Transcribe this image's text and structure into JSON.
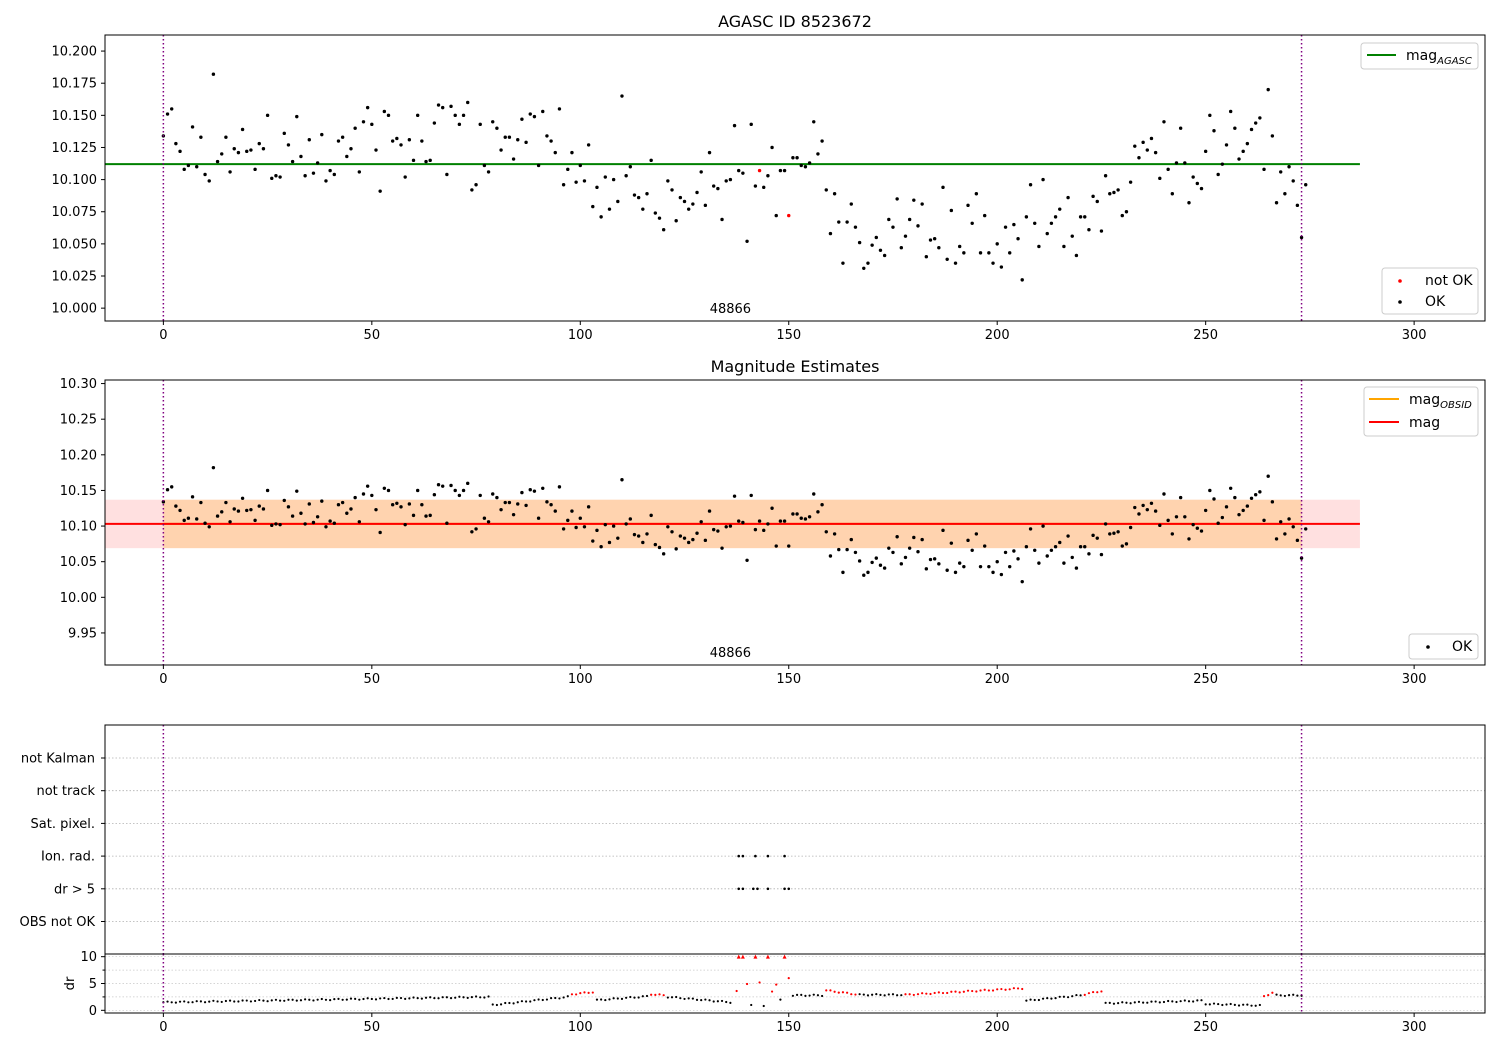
{
  "chart_data": [
    {
      "type": "scatter",
      "title": "AGASC ID 8523672",
      "xlim": [
        -14,
        317
      ],
      "ylim": [
        9.99,
        10.2125
      ],
      "xticks": [
        0,
        50,
        100,
        150,
        200,
        250,
        300
      ],
      "yticks": [
        10.0,
        10.025,
        10.05,
        10.075,
        10.1,
        10.125,
        10.15,
        10.175,
        10.2
      ],
      "ytick_labels": [
        "10.000",
        "10.025",
        "10.050",
        "10.075",
        "10.100",
        "10.125",
        "10.150",
        "10.175",
        "10.200"
      ],
      "annotation": {
        "text": "48866",
        "x": 136
      },
      "obs_boundaries": [
        0,
        273
      ],
      "lines": [
        {
          "name": "mag_AGASC",
          "label_main": "mag",
          "label_sub": "AGASC",
          "y": 10.112,
          "x_range": [
            -14,
            287
          ],
          "color": "#008000"
        }
      ],
      "series": [
        {
          "name": "not OK",
          "color": "#ff0000",
          "points": [
            [
              143,
              10.107
            ],
            [
              150,
              10.072
            ]
          ]
        },
        {
          "name": "OK",
          "color": "#000000",
          "points": []
        }
      ],
      "legend_locations": [
        "upper right",
        "lower right"
      ]
    },
    {
      "type": "scatter",
      "title": "Magnitude Estimates",
      "xlim": [
        -14,
        317
      ],
      "ylim": [
        9.905,
        10.305
      ],
      "xticks": [
        0,
        50,
        100,
        150,
        200,
        250,
        300
      ],
      "yticks": [
        9.95,
        10.0,
        10.05,
        10.1,
        10.15,
        10.2,
        10.25,
        10.3
      ],
      "ytick_labels": [
        "9.95",
        "10.00",
        "10.05",
        "10.10",
        "10.15",
        "10.20",
        "10.25",
        "10.30"
      ],
      "annotation": {
        "text": "48866",
        "x": 136
      },
      "obs_boundaries": [
        0,
        273
      ],
      "lines": [
        {
          "name": "mag_OBSID",
          "label_main": "mag",
          "label_sub": "OBSID",
          "y": 10.103,
          "x_range": [
            0,
            273
          ],
          "color": "#ffa500",
          "band": [
            10.069,
            10.137
          ]
        },
        {
          "name": "mag",
          "label_main": "mag",
          "label_sub": "",
          "y": 10.103,
          "x_range": [
            -14,
            287
          ],
          "color": "#ff0000",
          "band": [
            10.069,
            10.137
          ]
        }
      ],
      "series": [
        {
          "name": "OK",
          "color": "#000000",
          "points": []
        }
      ],
      "legend_locations": [
        "upper right",
        "lower right"
      ]
    },
    {
      "type": "scatter",
      "title": "",
      "xlim": [
        -14,
        317
      ],
      "categories": [
        "not Kalman",
        "not track",
        "Sat. pixel.",
        "Ion. rad.",
        "dr > 5",
        "OBS not OK"
      ],
      "flag_points": {
        "Ion. rad.": [
          138,
          139,
          142,
          145,
          149
        ],
        "dr > 5": [
          138,
          139,
          141.5,
          142.5,
          145,
          149,
          150
        ]
      },
      "obs_boundaries": [
        0,
        273
      ]
    },
    {
      "type": "scatter",
      "title": "",
      "ylabel": "dr",
      "xlim": [
        -14,
        317
      ],
      "ylim": [
        -0.5,
        10.5
      ],
      "xticks": [
        0,
        50,
        100,
        150,
        200,
        250,
        300
      ],
      "yticks": [
        0,
        5,
        10
      ],
      "ytick_labels": [
        "0",
        "5",
        "10"
      ],
      "obs_boundaries": [
        0,
        273
      ],
      "segments": [
        {
          "from": 0,
          "to": 78,
          "start": 1.5,
          "end": 2.5,
          "color": "#000000"
        },
        {
          "from": 79,
          "to": 97,
          "start": 1.0,
          "end": 2.5,
          "color": "#000000"
        },
        {
          "from": 98,
          "to": 103,
          "start": 3.0,
          "end": 3.4,
          "color": "#ff0000"
        },
        {
          "from": 104,
          "to": 116,
          "start": 1.9,
          "end": 2.6,
          "color": "#000000"
        },
        {
          "from": 117,
          "to": 120,
          "start": 3.0,
          "end": 2.8,
          "color": "#ff0000"
        },
        {
          "from": 121,
          "to": 136,
          "start": 2.5,
          "end": 1.5,
          "color": "#000000"
        },
        {
          "from": 151,
          "to": 158,
          "start": 2.8,
          "end": 2.8,
          "color": "#000000"
        },
        {
          "from": 159,
          "to": 166,
          "start": 3.7,
          "end": 3.0,
          "color": "#ff0000"
        },
        {
          "from": 167,
          "to": 177,
          "start": 2.9,
          "end": 2.9,
          "color": "#000000"
        },
        {
          "from": 178,
          "to": 206,
          "start": 2.9,
          "end": 4.1,
          "color": "#ff0000"
        },
        {
          "from": 207,
          "to": 220,
          "start": 1.8,
          "end": 2.8,
          "color": "#000000"
        },
        {
          "from": 221,
          "to": 225,
          "start": 3.0,
          "end": 3.6,
          "color": "#ff0000"
        },
        {
          "from": 226,
          "to": 249,
          "start": 1.3,
          "end": 1.8,
          "color": "#000000"
        },
        {
          "from": 250,
          "to": 263,
          "start": 1.2,
          "end": 0.9,
          "color": "#000000"
        },
        {
          "from": 264,
          "to": 266,
          "start": 2.6,
          "end": 3.3,
          "color": "#ff0000"
        },
        {
          "from": 267,
          "to": 273,
          "start": 2.8,
          "end": 2.8,
          "color": "#000000"
        }
      ],
      "outlier_points": [
        {
          "x": 137.5,
          "y": 3.6,
          "color": "#ff0000"
        },
        {
          "x": 138,
          "y": 10,
          "color": "#ff0000",
          "marker": "triangle"
        },
        {
          "x": 139,
          "y": 10,
          "color": "#ff0000",
          "marker": "triangle"
        },
        {
          "x": 140,
          "y": 4.9,
          "color": "#ff0000"
        },
        {
          "x": 141,
          "y": 1.0,
          "color": "#000000"
        },
        {
          "x": 142,
          "y": 10,
          "color": "#ff0000",
          "marker": "triangle"
        },
        {
          "x": 143,
          "y": 5.2,
          "color": "#ff0000"
        },
        {
          "x": 144,
          "y": 0.8,
          "color": "#000000"
        },
        {
          "x": 145,
          "y": 10,
          "color": "#ff0000",
          "marker": "triangle"
        },
        {
          "x": 146,
          "y": 3.5,
          "color": "#ff0000"
        },
        {
          "x": 147,
          "y": 4.8,
          "color": "#ff0000"
        },
        {
          "x": 148,
          "y": 2.0,
          "color": "#000000"
        },
        {
          "x": 149,
          "y": 10,
          "color": "#ff0000",
          "marker": "triangle"
        },
        {
          "x": 150,
          "y": 6.0,
          "color": "#ff0000"
        }
      ]
    }
  ],
  "mag_trace": [
    10.134,
    10.151,
    10.155,
    10.128,
    10.122,
    10.108,
    10.111,
    10.141,
    10.11,
    10.133,
    10.104,
    10.099,
    10.182,
    10.114,
    10.12,
    10.133,
    10.106,
    10.124,
    10.121,
    10.139,
    10.122,
    10.123,
    10.108,
    10.128,
    10.124,
    10.15,
    10.101,
    10.103,
    10.102,
    10.136,
    10.127,
    10.114,
    10.149,
    10.118,
    10.103,
    10.131,
    10.105,
    10.113,
    10.135,
    10.099,
    10.107,
    10.104,
    10.13,
    10.133,
    10.118,
    10.124,
    10.14,
    10.106,
    10.145,
    10.156,
    10.143,
    10.123,
    10.091,
    10.153,
    10.15,
    10.13,
    10.132,
    10.127,
    10.102,
    10.131,
    10.115,
    10.15,
    10.13,
    10.114,
    10.115,
    10.144,
    10.158,
    10.156,
    10.104,
    10.157,
    10.15,
    10.143,
    10.15,
    10.16,
    10.092,
    10.096,
    10.143,
    10.111,
    10.106,
    10.145,
    10.14,
    10.123,
    10.133,
    10.133,
    10.116,
    10.131,
    10.147,
    10.129,
    10.151,
    10.149,
    10.111,
    10.153,
    10.134,
    10.13,
    10.121,
    10.155,
    10.096,
    10.108,
    10.121,
    10.098,
    10.111,
    10.099,
    10.127,
    10.079,
    10.094,
    10.071,
    10.102,
    10.077,
    10.1,
    10.083,
    10.165,
    10.103,
    10.11,
    10.088,
    10.086,
    10.077,
    10.089,
    10.115,
    10.074,
    10.07,
    10.061,
    10.099,
    10.092,
    10.068,
    10.086,
    10.083,
    10.077,
    10.081,
    10.09,
    10.106,
    10.08,
    10.121,
    10.095,
    10.093,
    10.069,
    10.099,
    10.1,
    10.142,
    10.107,
    10.105,
    10.052,
    10.143,
    10.095,
    10.107,
    10.094,
    10.103,
    10.125,
    10.072,
    10.107,
    10.107,
    10.072,
    10.117,
    10.117,
    10.111,
    10.11,
    10.113,
    10.145,
    10.12,
    10.13,
    10.092,
    10.058,
    10.089,
    10.067,
    10.035,
    10.067,
    10.081,
    10.063,
    10.051,
    10.031,
    10.035,
    10.049,
    10.055,
    10.045,
    10.041,
    10.069,
    10.063,
    10.085,
    10.047,
    10.056,
    10.069,
    10.084,
    10.064,
    10.081,
    10.04,
    10.053,
    10.054,
    10.047,
    10.094,
    10.038,
    10.076,
    10.035,
    10.048,
    10.043,
    10.08,
    10.066,
    10.089,
    10.043,
    10.072,
    10.043,
    10.035,
    10.05,
    10.032,
    10.063,
    10.043,
    10.065,
    10.054,
    10.022,
    10.071,
    10.096,
    10.066,
    10.048,
    10.1,
    10.058,
    10.066,
    10.071,
    10.077,
    10.048,
    10.086,
    10.056,
    10.041,
    10.071,
    10.071,
    10.061,
    10.087,
    10.083,
    10.06,
    10.103,
    10.089,
    10.09,
    10.092,
    10.072,
    10.075,
    10.098,
    10.126,
    10.117,
    10.129,
    10.123,
    10.132,
    10.121,
    10.101,
    10.145,
    10.108,
    10.089,
    10.113,
    10.14,
    10.113,
    10.082,
    10.102,
    10.097,
    10.093,
    10.122,
    10.15,
    10.138,
    10.104,
    10.112,
    10.127,
    10.153,
    10.14,
    10.116,
    10.122,
    10.128,
    10.139,
    10.144,
    10.148,
    10.108,
    10.17,
    10.134,
    10.082,
    10.106,
    10.089,
    10.11,
    10.099,
    10.08,
    10.055,
    10.096
  ],
  "legends": {
    "panel1": {
      "line_main": "mag",
      "line_sub": "AGASC",
      "not_ok": "not OK",
      "ok": "OK"
    },
    "panel2": {
      "obsid_main": "mag",
      "obsid_sub": "OBSID",
      "mag": "mag",
      "ok": "OK"
    }
  }
}
